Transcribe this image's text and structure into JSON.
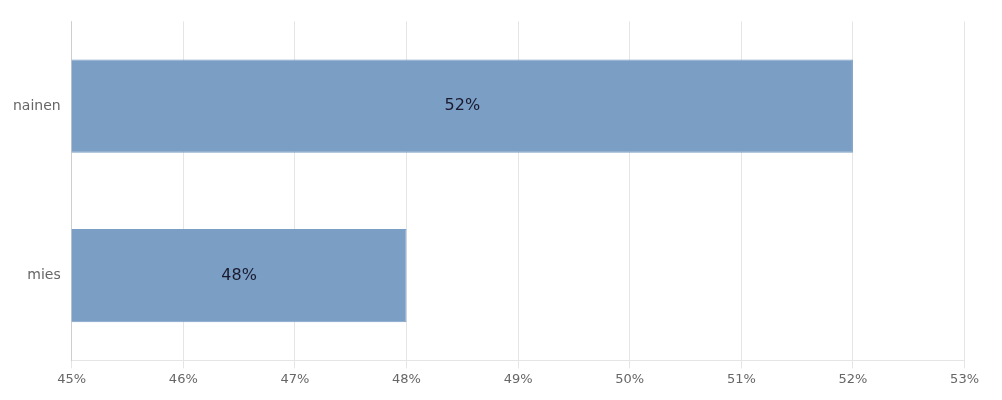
{
  "chart_data": {
    "type": "bar",
    "orientation": "horizontal",
    "categories": [
      "mies",
      "nainen"
    ],
    "values": [
      48,
      52
    ],
    "value_labels": [
      "48%",
      "52%"
    ],
    "data_labels": true,
    "color": "#7b9ec5",
    "xlim": [
      45,
      53
    ],
    "xticks": [
      {
        "value": 45,
        "label": "45%"
      },
      {
        "value": 46,
        "label": "46%"
      },
      {
        "value": 47,
        "label": "47%"
      },
      {
        "value": 48,
        "label": "48%"
      },
      {
        "value": 49,
        "label": "49%"
      },
      {
        "value": 50,
        "label": "50%"
      },
      {
        "value": 51,
        "label": "51%"
      },
      {
        "value": 52,
        "label": "52%"
      },
      {
        "value": 53,
        "label": "53%"
      }
    ],
    "grid": true
  }
}
